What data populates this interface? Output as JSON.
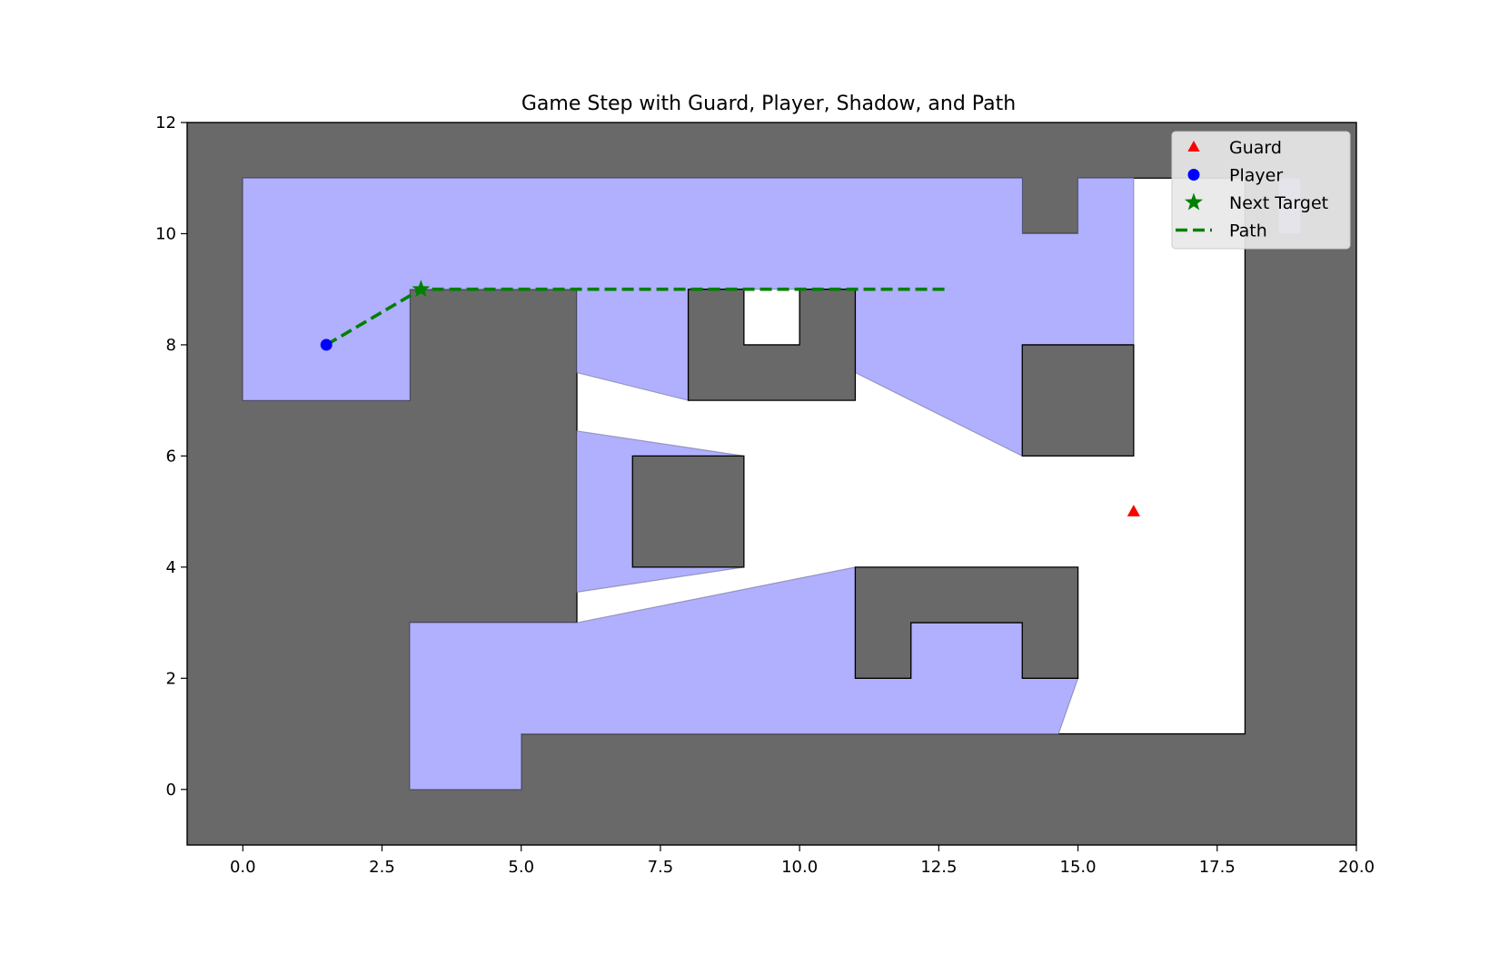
{
  "chart_data": {
    "type": "scatter",
    "title": "Game Step with Guard, Player, Shadow, and Path",
    "xlabel": "",
    "ylabel": "",
    "xlim": [
      -1,
      20
    ],
    "ylim": [
      -1,
      12
    ],
    "xticks": [
      0,
      2.5,
      5,
      7.5,
      10,
      12.5,
      15,
      17.5,
      20
    ],
    "xtick_labels": [
      "0.0",
      "2.5",
      "5.0",
      "7.5",
      "10.0",
      "12.5",
      "15.0",
      "17.5",
      "20.0"
    ],
    "yticks": [
      0,
      2,
      4,
      6,
      8,
      10,
      12
    ],
    "ytick_labels": [
      "0",
      "2",
      "4",
      "6",
      "8",
      "10",
      "12"
    ],
    "grid": false,
    "legend_position": "top-right",
    "colors": {
      "wall": "#696969",
      "floor": "#ffffff",
      "shadow": "#b0b0ff",
      "guard": "#ff0000",
      "player": "#0000ff",
      "target": "#008000",
      "path": "#008000"
    },
    "walls": [
      [
        [
          -1,
          -1
        ],
        [
          20,
          -1
        ],
        [
          20,
          12
        ],
        [
          -1,
          12
        ]
      ]
    ],
    "floor": [
      [
        [
          0,
          7
        ],
        [
          3,
          7
        ],
        [
          3,
          9
        ],
        [
          6,
          9
        ],
        [
          6,
          3
        ],
        [
          3,
          3
        ],
        [
          3,
          0
        ],
        [
          5,
          0
        ],
        [
          5,
          1
        ],
        [
          18,
          1
        ],
        [
          18,
          11
        ],
        [
          15,
          11
        ],
        [
          15,
          10
        ],
        [
          14,
          10
        ],
        [
          14,
          11
        ],
        [
          0,
          11
        ]
      ]
    ],
    "obstacles": [
      [
        [
          8,
          7
        ],
        [
          11,
          7
        ],
        [
          11,
          9
        ],
        [
          10,
          9
        ],
        [
          10,
          8
        ],
        [
          9,
          8
        ],
        [
          9,
          9
        ],
        [
          8,
          9
        ]
      ],
      [
        [
          7,
          4
        ],
        [
          9,
          4
        ],
        [
          9,
          6
        ],
        [
          7,
          6
        ]
      ],
      [
        [
          14,
          6
        ],
        [
          16,
          6
        ],
        [
          16,
          8
        ],
        [
          14,
          8
        ]
      ],
      [
        [
          11,
          2
        ],
        [
          12,
          2
        ],
        [
          12,
          3
        ],
        [
          14,
          3
        ],
        [
          14,
          2
        ],
        [
          15,
          2
        ],
        [
          15,
          4
        ],
        [
          11,
          4
        ]
      ]
    ],
    "shadow_regions": [
      [
        [
          0,
          11
        ],
        [
          14,
          11
        ],
        [
          14,
          10
        ],
        [
          15,
          10
        ],
        [
          15,
          11
        ],
        [
          16,
          11
        ],
        [
          16,
          8
        ],
        [
          14,
          8
        ],
        [
          14,
          6
        ],
        [
          11,
          7.5
        ],
        [
          11,
          9
        ],
        [
          8,
          9
        ],
        [
          8,
          7
        ],
        [
          6,
          7.5
        ],
        [
          6,
          9
        ],
        [
          3,
          9
        ],
        [
          3,
          7
        ],
        [
          0,
          7
        ]
      ],
      [
        [
          6,
          6.45
        ],
        [
          9,
          6
        ],
        [
          7,
          6
        ],
        [
          7,
          4
        ],
        [
          9,
          4
        ],
        [
          6,
          3.55
        ]
      ],
      [
        [
          3,
          3
        ],
        [
          6,
          3
        ],
        [
          11,
          4
        ],
        [
          11,
          2
        ],
        [
          12,
          2
        ],
        [
          12,
          3
        ],
        [
          14,
          3
        ],
        [
          14,
          2
        ],
        [
          15,
          2
        ],
        [
          14.65,
          1
        ],
        [
          5,
          1
        ],
        [
          5,
          0
        ],
        [
          3,
          0
        ]
      ],
      [
        [
          18.6,
          10
        ],
        [
          19,
          10
        ],
        [
          19,
          11
        ],
        [
          18.6,
          11
        ]
      ]
    ],
    "guard": {
      "x": 16,
      "y": 5
    },
    "player": {
      "x": 1.5,
      "y": 8
    },
    "next_target": {
      "x": 3.2,
      "y": 9
    },
    "path": {
      "x": [
        1.5,
        3.2,
        12.7
      ],
      "y": [
        8,
        9,
        9
      ]
    },
    "legend": [
      {
        "label": "Guard",
        "marker": "triangle",
        "color": "#ff0000"
      },
      {
        "label": "Player",
        "marker": "circle",
        "color": "#0000ff"
      },
      {
        "label": "Next Target",
        "marker": "star",
        "color": "#008000"
      },
      {
        "label": "Path",
        "marker": "dashed-line",
        "color": "#008000"
      }
    ]
  }
}
